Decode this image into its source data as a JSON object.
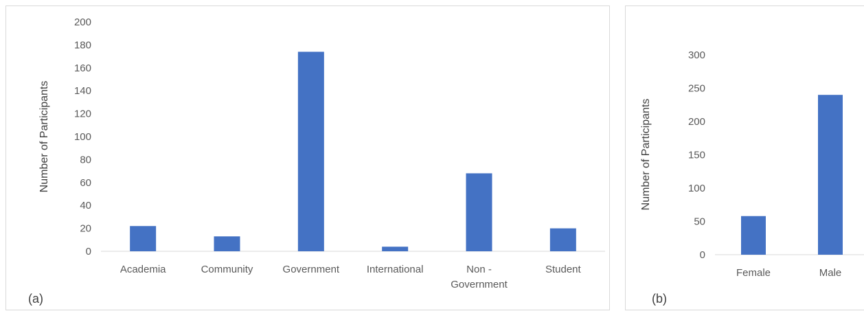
{
  "chart_data": [
    {
      "type": "bar",
      "panel_label": "(a)",
      "categories": [
        "Academia",
        "Community",
        "Government",
        "International",
        "Non -\nGovernment",
        "Student"
      ],
      "values": [
        22,
        13,
        174,
        4,
        68,
        20
      ],
      "ylabel": "Number of Participants",
      "xlabel": "",
      "ylim": [
        0,
        200
      ],
      "yticks": [
        0,
        20,
        40,
        60,
        80,
        100,
        120,
        140,
        160,
        180,
        200
      ],
      "bar_color": "#4472c4",
      "grid": false
    },
    {
      "type": "bar",
      "panel_label": "(b)",
      "categories": [
        "Female",
        "Male"
      ],
      "values": [
        58,
        240
      ],
      "ylabel": "Number of Participants",
      "xlabel": "",
      "ylim": [
        0,
        300
      ],
      "yticks": [
        0,
        50,
        100,
        150,
        200,
        250,
        300
      ],
      "bar_color": "#4472c4",
      "grid": false
    }
  ]
}
